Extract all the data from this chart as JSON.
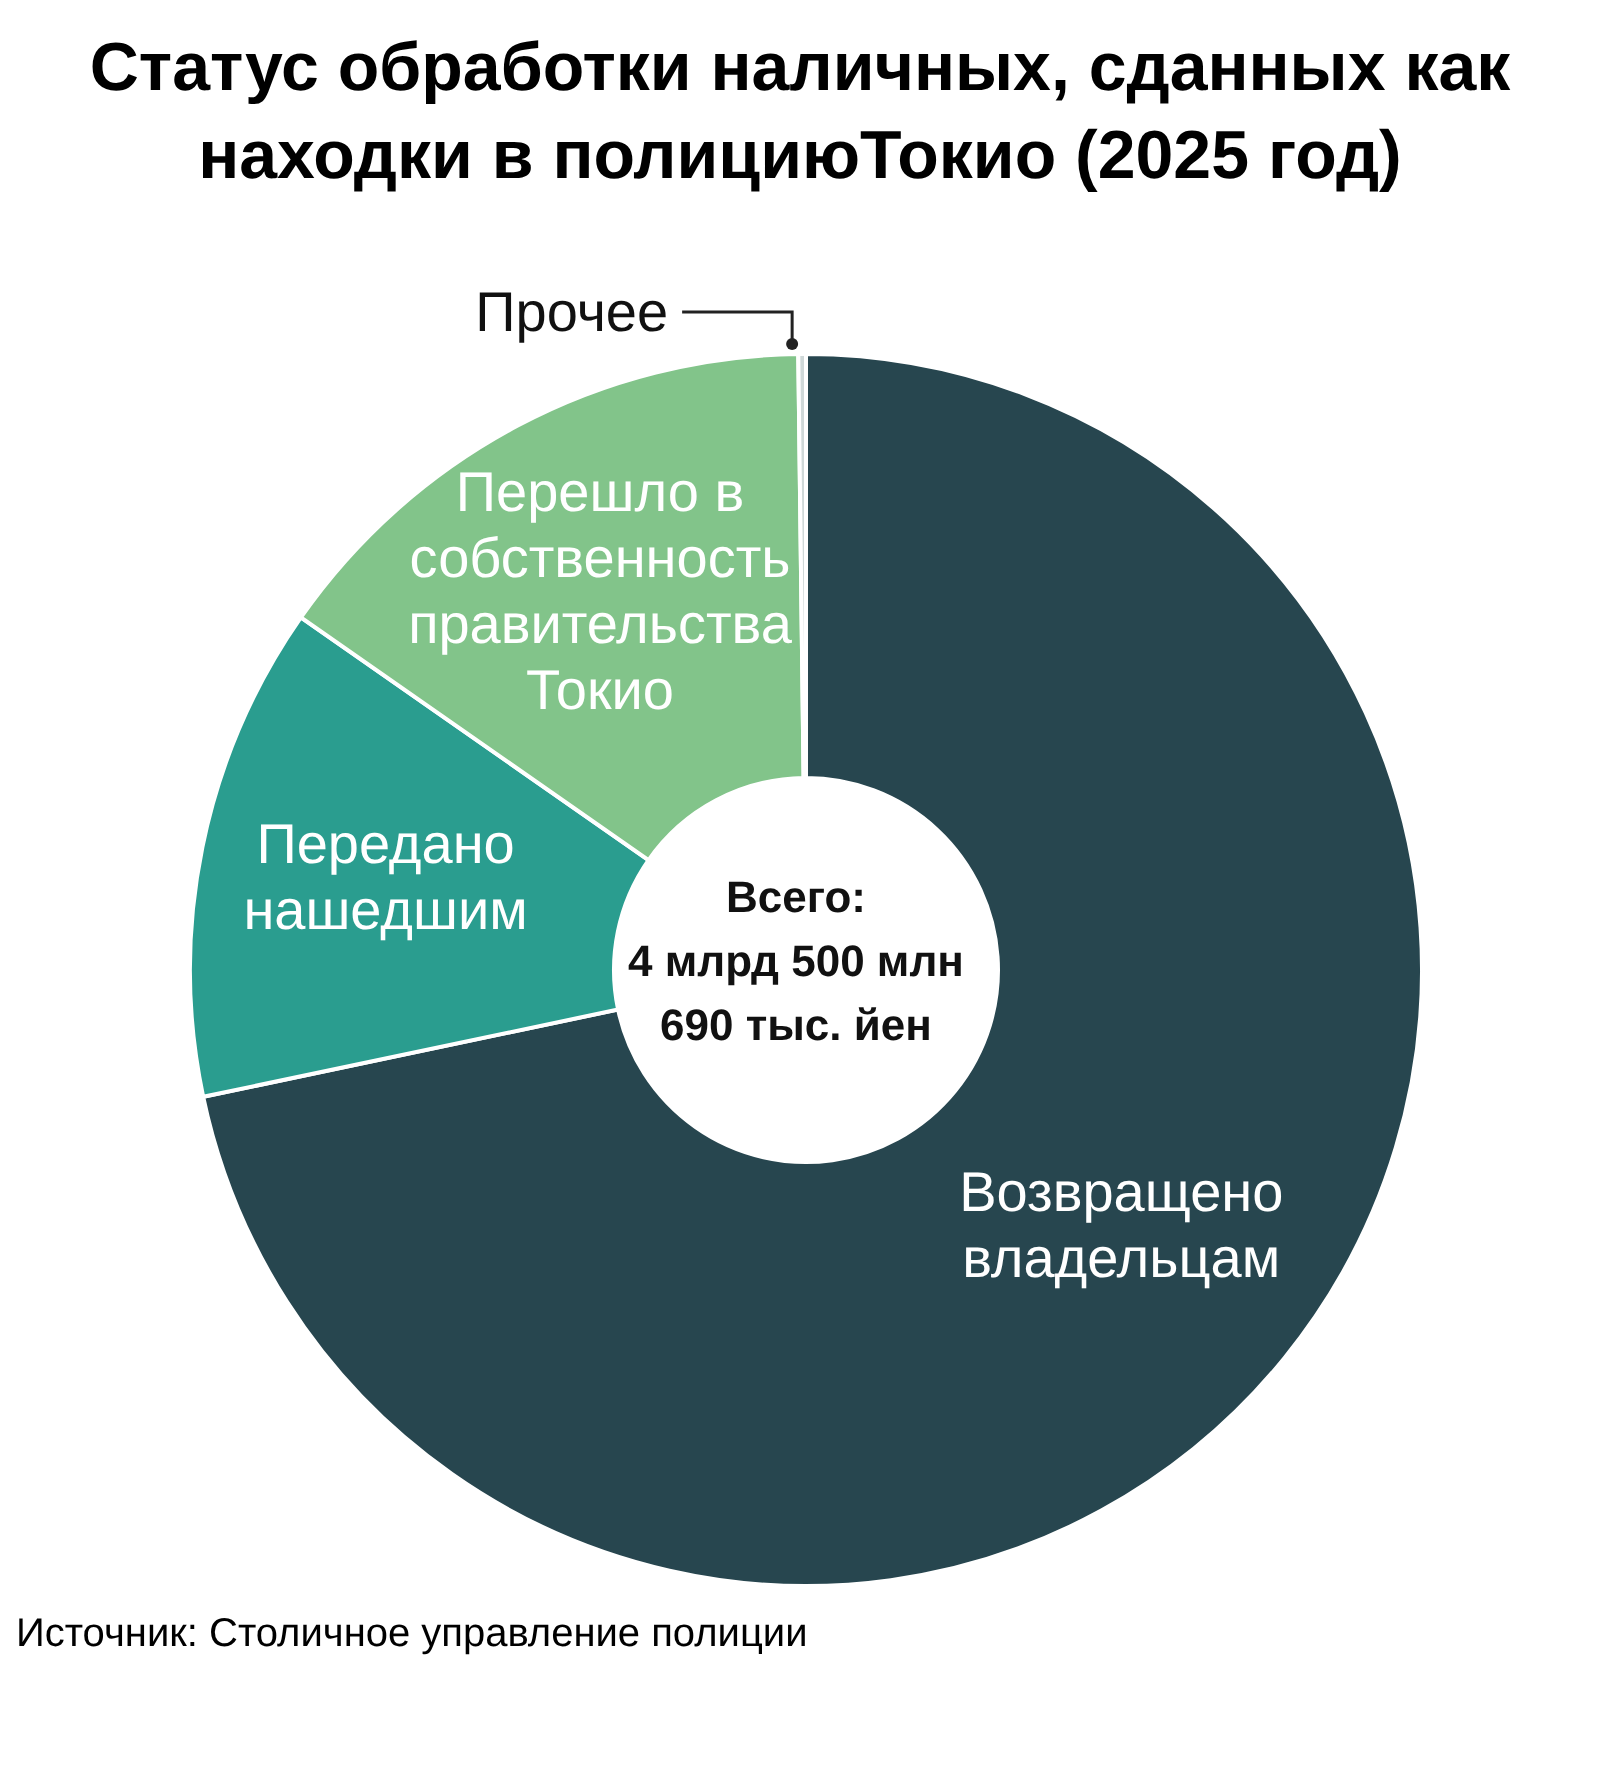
{
  "chart_data": {
    "type": "donut",
    "title": "Статус обработки наличных, сданных как находки в полициюТокио (2025 год)",
    "categories": [
      "Возвращено владельцам",
      "Передано нашедшим",
      "Перешло в собственность правительства Токио",
      "Прочее"
    ],
    "values": [
      71.7,
      13.0,
      15.1,
      0.2
    ],
    "colors": [
      "#27464f",
      "#2a9d8f",
      "#82c48a",
      "#cfd8d8"
    ],
    "annotations": [
      "Всего:\n4 млрд 500 млн\n690 тыс. йен",
      "Источник: Столичное управление полиции"
    ]
  }
}
